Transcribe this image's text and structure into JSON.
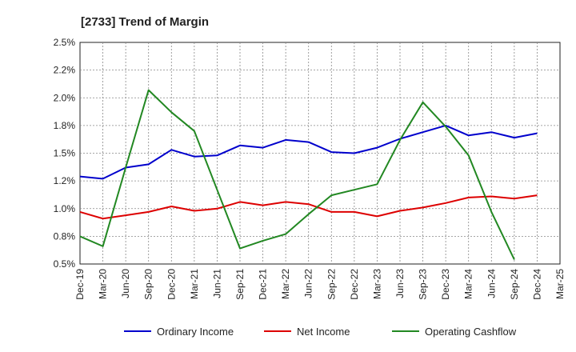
{
  "chart_data": {
    "type": "line",
    "title": "[2733]  Trend of Margin",
    "xlabel": "",
    "ylabel": "",
    "categories": [
      "Dec-19",
      "Mar-20",
      "Jun-20",
      "Sep-20",
      "Dec-20",
      "Mar-21",
      "Jun-21",
      "Sep-21",
      "Dec-21",
      "Mar-22",
      "Jun-22",
      "Sep-22",
      "Dec-22",
      "Mar-23",
      "Jun-23",
      "Sep-23",
      "Dec-23",
      "Mar-24",
      "Jun-24",
      "Sep-24",
      "Dec-24",
      "Mar-25"
    ],
    "ylim": [
      0.5,
      2.5
    ],
    "yticks": [
      "2.5%",
      "2.2%",
      "2.0%",
      "1.8%",
      "1.5%",
      "1.2%",
      "1.0%",
      "0.8%",
      "0.5%"
    ],
    "grid": true,
    "legend_position": "bottom",
    "series": [
      {
        "name": "Ordinary Income",
        "color": "#0000cc",
        "values": [
          1.29,
          1.27,
          1.37,
          1.4,
          1.53,
          1.47,
          1.48,
          1.57,
          1.55,
          1.62,
          1.6,
          1.51,
          1.5,
          1.55,
          1.63,
          1.69,
          1.75,
          1.66,
          1.69,
          1.64,
          1.68,
          null
        ]
      },
      {
        "name": "Net Income",
        "color": "#dd0000",
        "values": [
          0.97,
          0.91,
          0.94,
          0.97,
          1.02,
          0.98,
          1.0,
          1.06,
          1.03,
          1.06,
          1.04,
          0.97,
          0.97,
          0.93,
          0.98,
          1.01,
          1.05,
          1.1,
          1.11,
          1.09,
          1.12,
          null
        ]
      },
      {
        "name": "Operating Cashflow",
        "color": "#228822",
        "values": [
          0.75,
          0.66,
          1.37,
          2.07,
          1.87,
          1.7,
          1.17,
          0.64,
          0.71,
          0.77,
          0.95,
          1.12,
          1.17,
          1.22,
          1.62,
          1.96,
          1.74,
          1.48,
          0.97,
          0.54,
          null,
          null
        ]
      }
    ]
  }
}
